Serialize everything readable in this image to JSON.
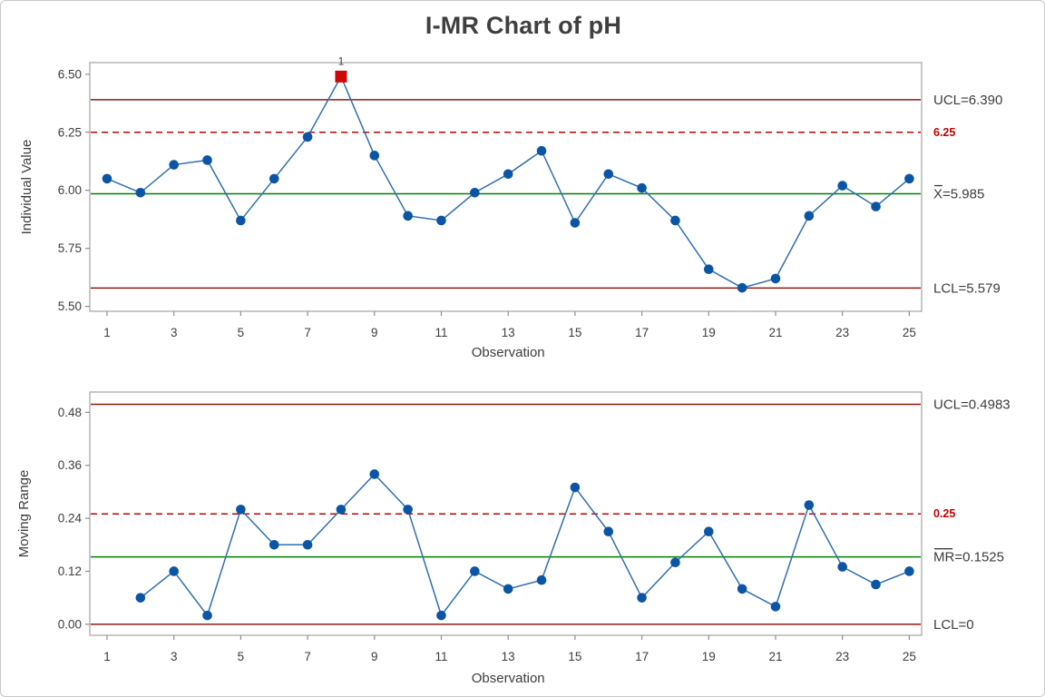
{
  "title": "I-MR Chart of pH",
  "colors": {
    "text": "#3d3d3d",
    "plot_border": "#a3a3a3",
    "tick": "#8c8c8c",
    "control_limit": "#8b1a0f",
    "reference_line": "#c00000",
    "center_line": "#008000",
    "series_line": "#2e6fb2",
    "marker": "#0c55a5",
    "flag_marker": "#ce0606",
    "flag_label": "#3d3d3d"
  },
  "chart_data": [
    {
      "type": "line",
      "name": "individuals",
      "ylabel": "Individual Value",
      "xlabel": "Observation",
      "x": [
        1,
        2,
        3,
        4,
        5,
        6,
        7,
        8,
        9,
        10,
        11,
        12,
        13,
        14,
        15,
        16,
        17,
        18,
        19,
        20,
        21,
        22,
        23,
        24,
        25
      ],
      "values": [
        6.05,
        5.99,
        6.11,
        6.13,
        5.87,
        6.05,
        6.23,
        6.49,
        6.15,
        5.89,
        5.87,
        5.99,
        6.07,
        6.17,
        5.86,
        6.07,
        6.01,
        5.87,
        5.66,
        5.58,
        5.62,
        5.89,
        6.02,
        5.93,
        6.05
      ],
      "xticks": [
        1,
        3,
        5,
        7,
        9,
        11,
        13,
        15,
        17,
        19,
        21,
        23,
        25
      ],
      "yticks": [
        {
          "value": 5.5,
          "label": "5.50"
        },
        {
          "value": 5.75,
          "label": "5.75"
        },
        {
          "value": 6.0,
          "label": "6.00"
        },
        {
          "value": 6.25,
          "label": "6.25"
        },
        {
          "value": 6.5,
          "label": "6.50"
        }
      ],
      "ylim": [
        5.479,
        6.55
      ],
      "grid": false,
      "lines": [
        {
          "value": 6.39,
          "label": "UCL=6.390",
          "type": "control"
        },
        {
          "value": 6.25,
          "label": "6.25",
          "type": "reference"
        },
        {
          "value": 5.985,
          "label": "X=5.985",
          "type": "center",
          "overbar": "X"
        },
        {
          "value": 5.579,
          "label": "LCL=5.579",
          "type": "control"
        }
      ],
      "flags": [
        {
          "x": 8,
          "label": "1"
        }
      ]
    },
    {
      "type": "line",
      "name": "moving-range",
      "ylabel": "Moving Range",
      "xlabel": "Observation",
      "x": [
        2,
        3,
        4,
        5,
        6,
        7,
        8,
        9,
        10,
        11,
        12,
        13,
        14,
        15,
        16,
        17,
        18,
        19,
        20,
        21,
        22,
        23,
        24,
        25
      ],
      "values": [
        0.06,
        0.12,
        0.02,
        0.26,
        0.18,
        0.18,
        0.26,
        0.34,
        0.26,
        0.02,
        0.12,
        0.08,
        0.1,
        0.31,
        0.21,
        0.06,
        0.14,
        0.21,
        0.08,
        0.04,
        0.27,
        0.13,
        0.09,
        0.12
      ],
      "xticks": [
        1,
        3,
        5,
        7,
        9,
        11,
        13,
        15,
        17,
        19,
        21,
        23,
        25
      ],
      "yticks": [
        {
          "value": 0.0,
          "label": "0.00"
        },
        {
          "value": 0.12,
          "label": "0.12"
        },
        {
          "value": 0.24,
          "label": "0.24"
        },
        {
          "value": 0.36,
          "label": "0.36"
        },
        {
          "value": 0.48,
          "label": "0.48"
        }
      ],
      "ylim": [
        -0.025,
        0.526
      ],
      "grid": false,
      "lines": [
        {
          "value": 0.4983,
          "label": "UCL=0.4983",
          "type": "control"
        },
        {
          "value": 0.25,
          "label": "0.25",
          "type": "reference"
        },
        {
          "value": 0.1525,
          "label": "MR=0.1525",
          "type": "center",
          "overbar": "MR"
        },
        {
          "value": 0,
          "label": "LCL=0",
          "type": "control"
        }
      ],
      "flags": []
    }
  ]
}
